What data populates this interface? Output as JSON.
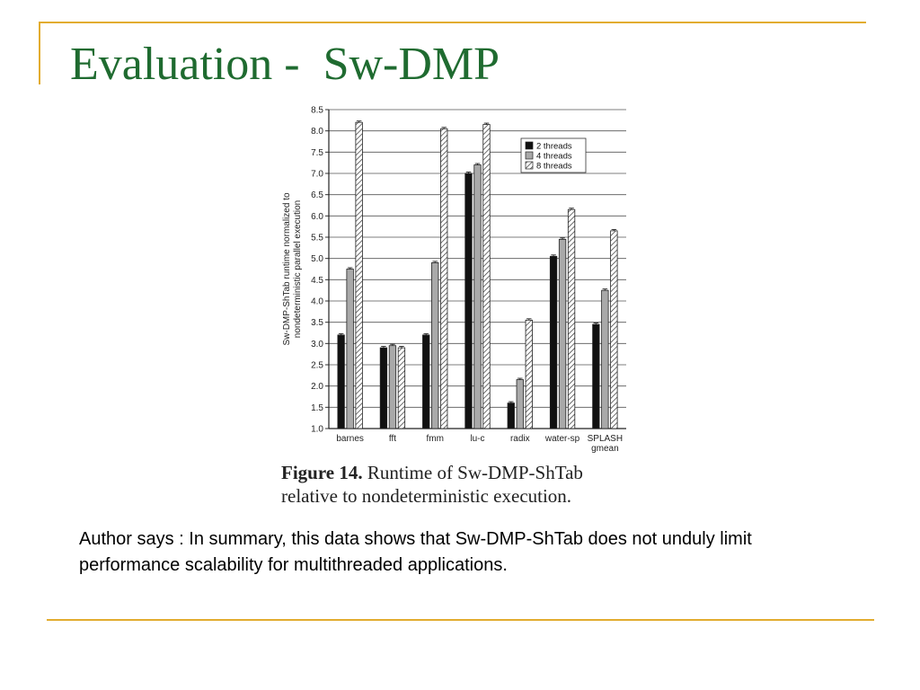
{
  "slide": {
    "title": "Evaluation -  Sw-DMP",
    "summary": "Author says : In summary, this data shows that Sw-DMP-ShTab does not unduly limit performance scalability for multithreaded applications."
  },
  "figure": {
    "label": "Figure  14.",
    "caption": "  Runtime  of  Sw-DMP-ShTab relative to nondeterministic execution."
  },
  "colors": {
    "accent_rule": "#e2ac2f",
    "title": "#1f6b30",
    "series": [
      "#111111",
      "#a9a9a9",
      "hatch"
    ]
  },
  "chart_data": {
    "type": "bar",
    "title": "",
    "xlabel": "",
    "ylabel": "Sw-DMP-ShTab runtime normalized to\nnondeterministic parallel execution",
    "ylim": [
      1.0,
      8.5
    ],
    "yticks": [
      "1.0",
      "1.5",
      "2.0",
      "2.5",
      "3.0",
      "3.5",
      "4.0",
      "4.5",
      "5.0",
      "5.5",
      "6.0",
      "6.5",
      "7.0",
      "7.5",
      "8.0",
      "8.5"
    ],
    "grid": true,
    "legend_position": "top-right",
    "categories": [
      "barnes",
      "fft",
      "fmm",
      "lu-c",
      "radix",
      "water-sp",
      "SPLASH\ngmean"
    ],
    "series": [
      {
        "name": "2 threads",
        "values": [
          3.2,
          2.9,
          3.2,
          7.0,
          1.6,
          5.05,
          3.45
        ]
      },
      {
        "name": "4 threads",
        "values": [
          4.75,
          2.95,
          4.9,
          7.2,
          2.15,
          5.45,
          4.25
        ]
      },
      {
        "name": "8 threads",
        "values": [
          8.2,
          2.9,
          8.05,
          8.15,
          3.55,
          6.15,
          5.65
        ]
      }
    ]
  }
}
